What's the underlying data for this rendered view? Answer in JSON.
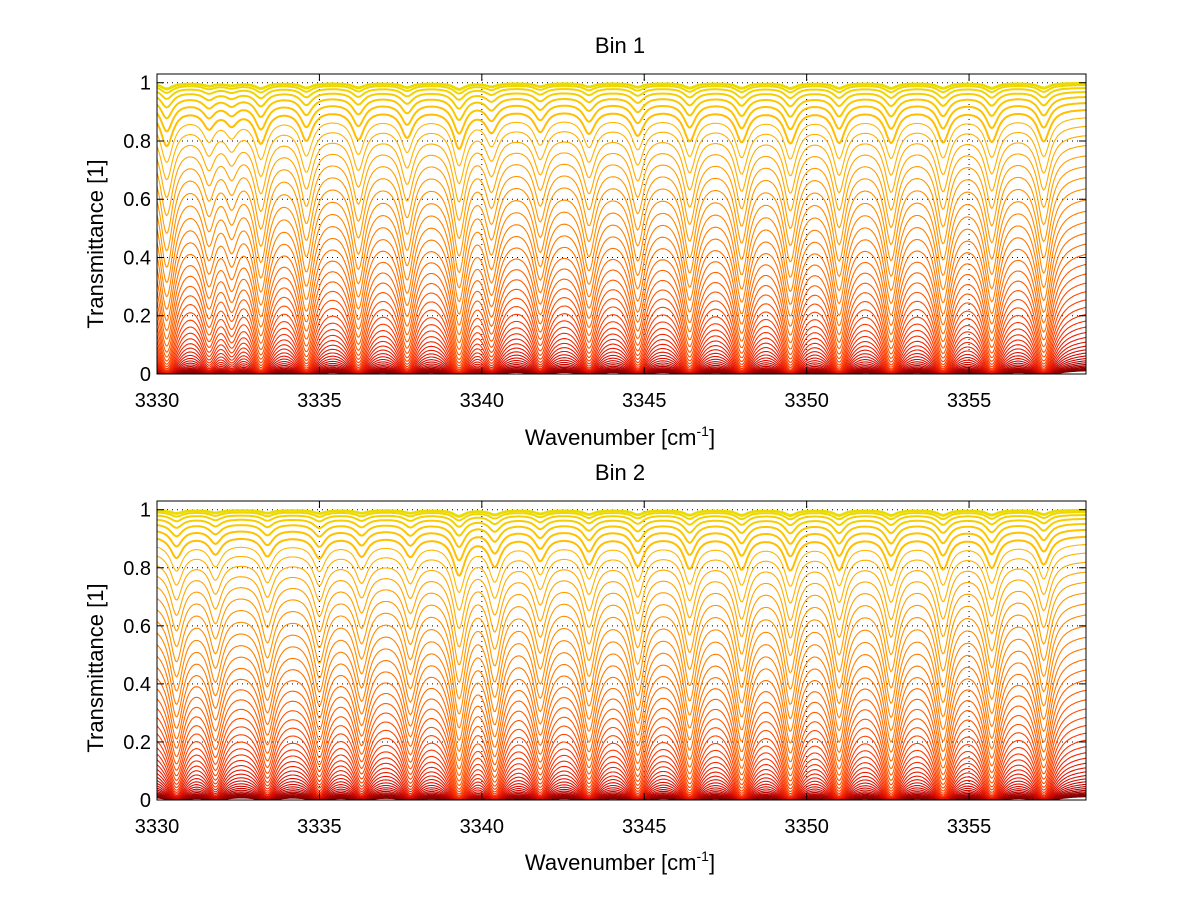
{
  "colors": {
    "axes": "#000000",
    "grid": "#000000",
    "ramp": [
      "#7a0000",
      "#b00000",
      "#e01000",
      "#ff3a00",
      "#ff6a00",
      "#ff9500",
      "#ffc000",
      "#e8e000"
    ]
  },
  "chart_data": [
    {
      "type": "line",
      "title": "Bin 1",
      "xlabel": "Wavenumber [cm",
      "xlabel_sup": "-1",
      "xlabel_end": "]",
      "ylabel": "Transmittance [1]",
      "xlim": [
        3330,
        3358.6
      ],
      "ylim": [
        0,
        1.03
      ],
      "xticks": [
        "3330",
        "3335",
        "3340",
        "3345",
        "3350",
        "3355"
      ],
      "yticks": [
        "0",
        "0.2",
        "0.4",
        "0.6",
        "0.8",
        "1"
      ],
      "grid": true,
      "series_count": 48,
      "line_depths": [
        {
          "x": 3330.3,
          "depth": 0.95
        },
        {
          "x": 3331.6,
          "depth": 0.45
        },
        {
          "x": 3332.3,
          "depth": 0.35
        },
        {
          "x": 3333.2,
          "depth": 0.85
        },
        {
          "x": 3334.6,
          "depth": 0.78
        },
        {
          "x": 3336.2,
          "depth": 0.75
        },
        {
          "x": 3337.7,
          "depth": 0.7
        },
        {
          "x": 3339.3,
          "depth": 1.0
        },
        {
          "x": 3340.3,
          "depth": 0.55
        },
        {
          "x": 3341.8,
          "depth": 0.55
        },
        {
          "x": 3343.3,
          "depth": 0.6
        },
        {
          "x": 3344.8,
          "depth": 0.65
        },
        {
          "x": 3346.4,
          "depth": 0.8
        },
        {
          "x": 3348.0,
          "depth": 0.82
        },
        {
          "x": 3349.5,
          "depth": 0.85
        },
        {
          "x": 3351.0,
          "depth": 0.84
        },
        {
          "x": 3352.6,
          "depth": 0.84
        },
        {
          "x": 3354.2,
          "depth": 0.83
        },
        {
          "x": 3355.7,
          "depth": 0.82
        },
        {
          "x": 3357.3,
          "depth": 0.82
        }
      ]
    },
    {
      "type": "line",
      "title": "Bin 2",
      "xlabel": "Wavenumber [cm",
      "xlabel_sup": "-1",
      "xlabel_end": "]",
      "ylabel": "Transmittance [1]",
      "xlim": [
        3330,
        3358.6
      ],
      "ylim": [
        0,
        1.03
      ],
      "xticks": [
        "3330",
        "3335",
        "3340",
        "3345",
        "3350",
        "3355"
      ],
      "yticks": [
        "0",
        "0.2",
        "0.4",
        "0.6",
        "0.8",
        "1"
      ],
      "grid": true,
      "series_count": 48,
      "line_depths": [
        {
          "x": 3330.6,
          "depth": 0.55
        },
        {
          "x": 3331.8,
          "depth": 0.45
        },
        {
          "x": 3333.4,
          "depth": 0.5
        },
        {
          "x": 3335.0,
          "depth": 0.55
        },
        {
          "x": 3336.3,
          "depth": 0.5
        },
        {
          "x": 3337.8,
          "depth": 0.5
        },
        {
          "x": 3339.3,
          "depth": 1.0
        },
        {
          "x": 3340.4,
          "depth": 0.75
        },
        {
          "x": 3341.8,
          "depth": 0.6
        },
        {
          "x": 3343.3,
          "depth": 0.7
        },
        {
          "x": 3344.8,
          "depth": 0.75
        },
        {
          "x": 3346.4,
          "depth": 0.82
        },
        {
          "x": 3348.0,
          "depth": 0.84
        },
        {
          "x": 3349.5,
          "depth": 0.86
        },
        {
          "x": 3351.0,
          "depth": 0.85
        },
        {
          "x": 3352.6,
          "depth": 0.85
        },
        {
          "x": 3354.2,
          "depth": 0.84
        },
        {
          "x": 3355.7,
          "depth": 0.8
        },
        {
          "x": 3357.3,
          "depth": 0.72
        }
      ]
    }
  ]
}
